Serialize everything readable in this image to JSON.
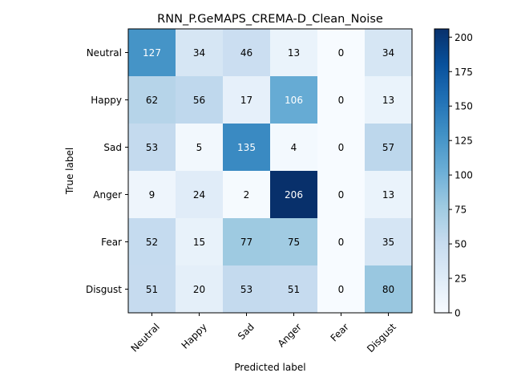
{
  "chart_data": {
    "type": "heatmap",
    "title": "RNN_P.GeMAPS_CREMA-D_Clean_Noise",
    "xlabel": "Predicted label",
    "ylabel": "True label",
    "x_categories": [
      "Neutral",
      "Happy",
      "Sad",
      "Anger",
      "Fear",
      "Disgust"
    ],
    "y_categories": [
      "Neutral",
      "Happy",
      "Sad",
      "Anger",
      "Fear",
      "Disgust"
    ],
    "values": [
      [
        127,
        34,
        46,
        13,
        0,
        34
      ],
      [
        62,
        56,
        17,
        106,
        0,
        13
      ],
      [
        53,
        5,
        135,
        4,
        0,
        57
      ],
      [
        9,
        24,
        2,
        206,
        0,
        13
      ],
      [
        52,
        15,
        77,
        75,
        0,
        35
      ],
      [
        51,
        20,
        53,
        51,
        0,
        80
      ]
    ],
    "colorbar": {
      "colormap": "Blues",
      "range": [
        0,
        206
      ],
      "ticks": [
        0,
        25,
        50,
        75,
        100,
        125,
        150,
        175,
        200
      ]
    },
    "x_tick_rotation_deg": 45
  }
}
